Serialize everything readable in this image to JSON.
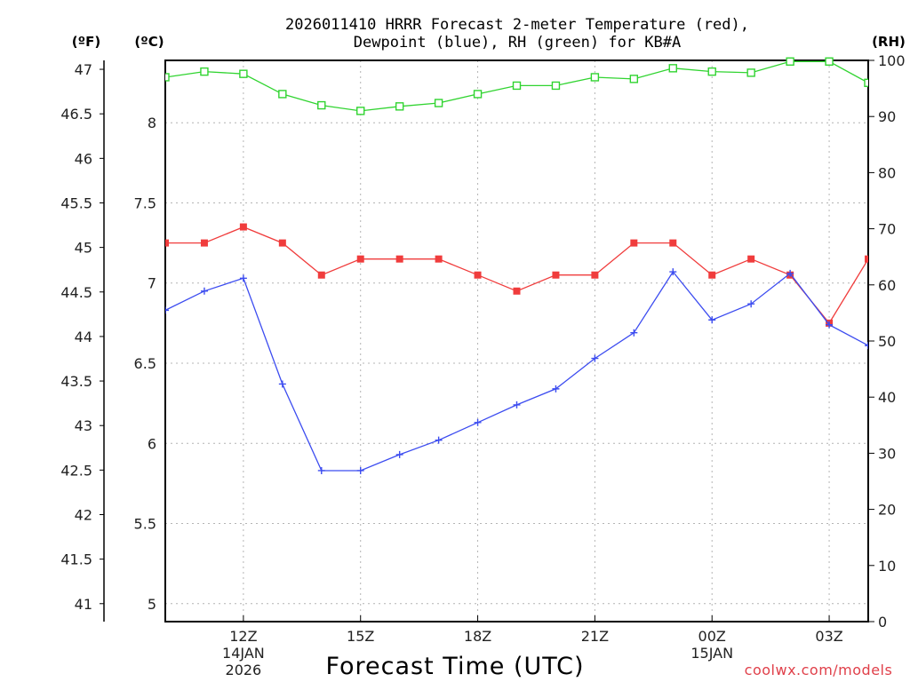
{
  "chart_data": {
    "type": "line",
    "title_line1": "2026011410 HRRR Forecast 2-meter Temperature (red),",
    "title_line2": "Dewpoint (blue), RH (green) for KB#A",
    "unit_f": "(ºF)",
    "unit_c": "(ºC)",
    "unit_rh": "(RH)",
    "xlabel": "Forecast Time (UTC)",
    "credit": "coolwx.com/models",
    "hours": [
      10,
      11,
      12,
      13,
      14,
      15,
      16,
      17,
      18,
      19,
      20,
      21,
      22,
      23,
      24,
      25,
      26,
      27,
      28
    ],
    "xlim": [
      10,
      28
    ],
    "x_ticks": [
      {
        "hour": 12,
        "label": "12Z",
        "sub1": "14JAN",
        "sub2": "2026"
      },
      {
        "hour": 15,
        "label": "15Z",
        "sub1": "",
        "sub2": ""
      },
      {
        "hour": 18,
        "label": "18Z",
        "sub1": "",
        "sub2": ""
      },
      {
        "hour": 21,
        "label": "21Z",
        "sub1": "",
        "sub2": ""
      },
      {
        "hour": 24,
        "label": "00Z",
        "sub1": "15JAN",
        "sub2": ""
      },
      {
        "hour": 27,
        "label": "03Z",
        "sub1": "",
        "sub2": ""
      }
    ],
    "c_ticks": [
      "5",
      "5.5",
      "6",
      "6.5",
      "7",
      "7.5",
      "8"
    ],
    "f_ticks": [
      "41",
      "41.5",
      "42",
      "42.5",
      "43",
      "43.5",
      "44",
      "44.5",
      "45",
      "45.5",
      "46",
      "46.5",
      "47"
    ],
    "rh_ticks": [
      "0",
      "10",
      "20",
      "30",
      "40",
      "50",
      "60",
      "70",
      "80",
      "90",
      "100"
    ],
    "ylim_c": [
      4.888,
      8.389
    ],
    "ylim_rh": [
      0,
      100
    ],
    "series": [
      {
        "name": "Temperature",
        "axis": "c",
        "color": "#f03c3c",
        "marker": "filled-square",
        "values": [
          7.25,
          7.25,
          7.35,
          7.25,
          7.05,
          7.15,
          7.15,
          7.15,
          7.05,
          6.95,
          7.05,
          7.05,
          7.25,
          7.25,
          7.05,
          7.15,
          7.05,
          6.75,
          7.15
        ]
      },
      {
        "name": "Dewpoint",
        "axis": "c",
        "color": "#3c4cf0",
        "marker": "plus",
        "values": [
          6.83,
          6.95,
          7.03,
          6.37,
          5.83,
          5.83,
          5.93,
          6.02,
          6.13,
          6.24,
          6.34,
          6.53,
          6.69,
          7.07,
          6.77,
          6.87,
          7.06,
          6.74,
          6.61
        ]
      },
      {
        "name": "RH",
        "axis": "rh",
        "color": "#30d430",
        "marker": "open-square",
        "values": [
          97,
          98,
          97.6,
          94,
          92,
          91,
          91.8,
          92.4,
          94,
          95.5,
          95.5,
          97,
          96.7,
          98.6,
          98,
          97.8,
          99.8,
          99.8,
          96
        ]
      }
    ]
  }
}
